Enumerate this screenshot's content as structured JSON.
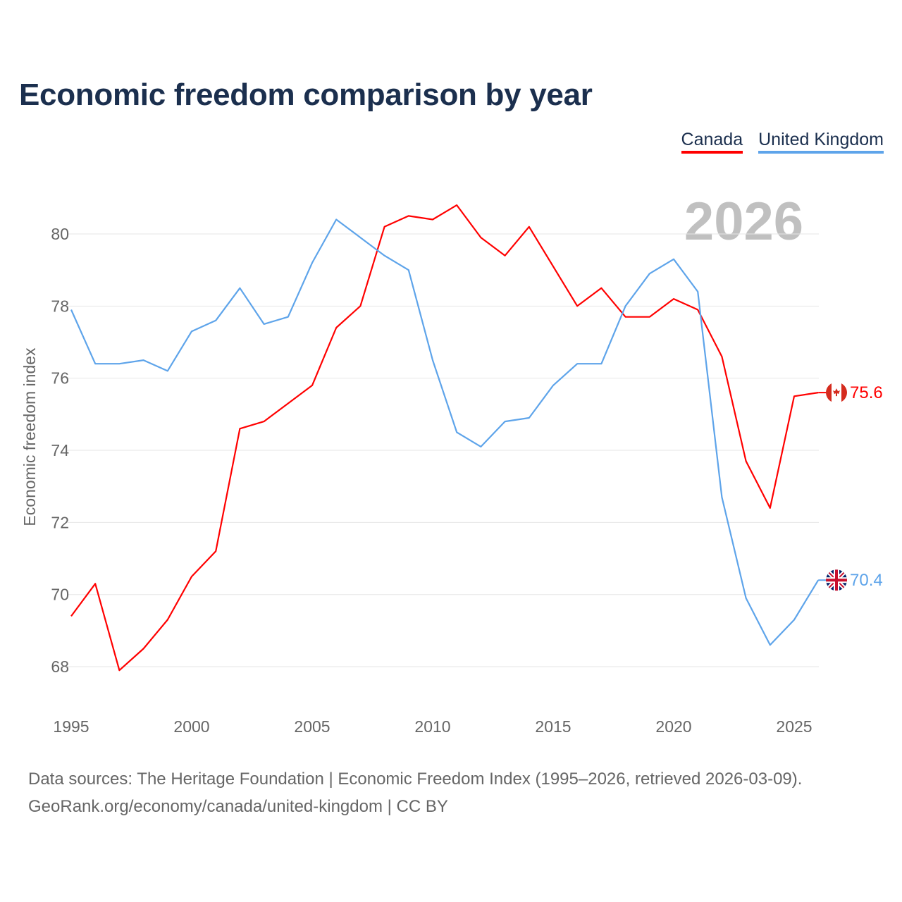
{
  "title": "Economic freedom comparison by year",
  "year_badge": "2026",
  "footer": {
    "line1": "Data sources: The Heritage Foundation | Economic Freedom Index (1995–2026, retrieved 2026-03-09).",
    "line2": "GeoRank.org/economy/canada/united-kingdom | CC BY"
  },
  "chart_data": {
    "type": "line",
    "title": "Economic freedom comparison by year",
    "xlabel": "",
    "ylabel": "Economic freedom index",
    "x": [
      1995,
      1996,
      1997,
      1998,
      1999,
      2000,
      2001,
      2002,
      2003,
      2004,
      2005,
      2006,
      2007,
      2008,
      2009,
      2010,
      2011,
      2012,
      2013,
      2014,
      2015,
      2016,
      2017,
      2018,
      2019,
      2020,
      2021,
      2022,
      2023,
      2024,
      2025,
      2026
    ],
    "xticks": [
      "1995",
      "2000",
      "2005",
      "2010",
      "2015",
      "2020",
      "2025"
    ],
    "yticks": [
      "68",
      "70",
      "72",
      "74",
      "76",
      "78",
      "80"
    ],
    "ylim": [
      67,
      81
    ],
    "grid": true,
    "legend_position": "top-right",
    "series": [
      {
        "name": "Canada",
        "color": "#ff0000",
        "end_label": "75.6",
        "values": [
          69.4,
          70.3,
          67.9,
          68.5,
          69.3,
          70.5,
          71.2,
          74.6,
          74.8,
          75.3,
          75.8,
          77.4,
          78.0,
          80.2,
          80.5,
          80.4,
          80.8,
          79.9,
          79.4,
          80.2,
          79.1,
          78.0,
          78.5,
          77.7,
          77.7,
          78.2,
          77.9,
          76.6,
          73.7,
          72.4,
          75.5,
          75.6
        ]
      },
      {
        "name": "United Kingdom",
        "color": "#5ea4ea",
        "end_label": "70.4",
        "values": [
          77.9,
          76.4,
          76.4,
          76.5,
          76.2,
          77.3,
          77.6,
          78.5,
          77.5,
          77.7,
          79.2,
          80.4,
          79.9,
          79.4,
          79.0,
          76.5,
          74.5,
          74.1,
          74.8,
          74.9,
          75.8,
          76.4,
          76.4,
          78.0,
          78.9,
          79.3,
          78.4,
          72.7,
          69.9,
          68.6,
          69.3,
          70.4
        ]
      }
    ]
  }
}
